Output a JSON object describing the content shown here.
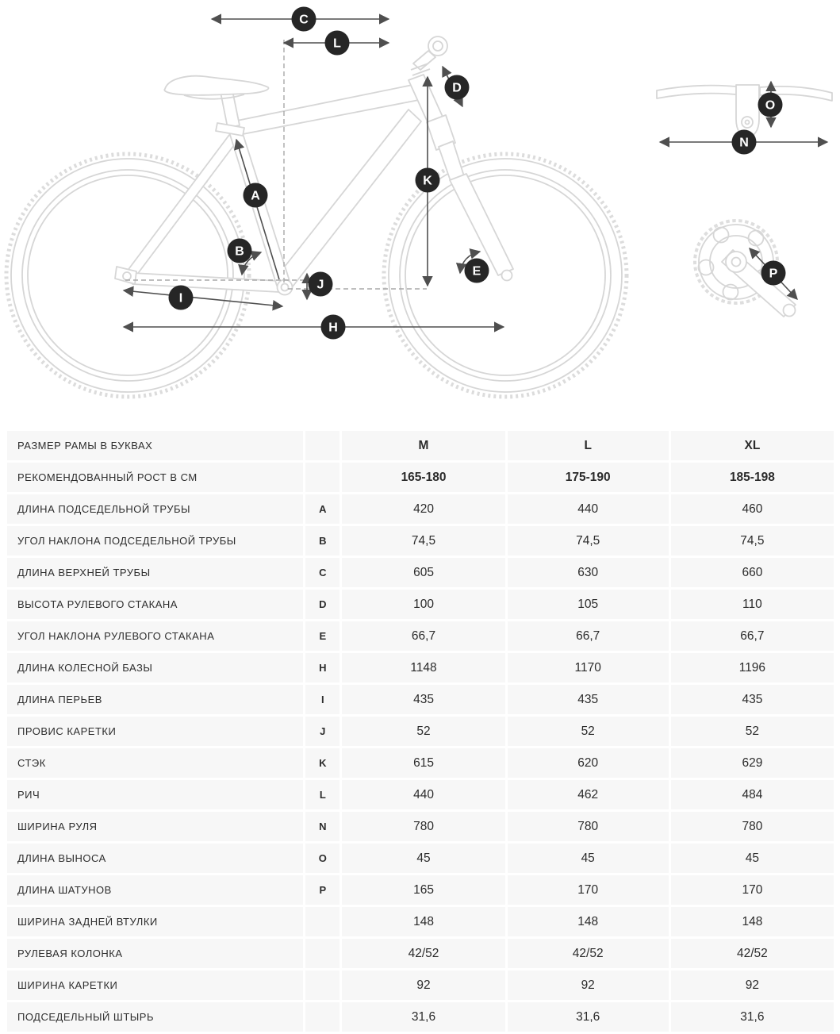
{
  "diagram": {
    "badge_color": "#262626",
    "art_color": "#d6d6d6",
    "dimension_color": "#4f4f4f",
    "badges": {
      "A": "A",
      "B": "B",
      "C": "C",
      "D": "D",
      "E": "E",
      "H": "H",
      "I": "I",
      "J": "J",
      "K": "K",
      "L": "L",
      "N": "N",
      "O": "O",
      "P": "P"
    }
  },
  "table": {
    "columns": [
      "M",
      "L",
      "XL"
    ],
    "rows": [
      {
        "label": "РАЗМЕР РАМЫ В БУКВАХ",
        "letter": "",
        "values": [
          "M",
          "L",
          "XL"
        ],
        "bold": true
      },
      {
        "label": "РЕКОМЕНДОВАННЫЙ РОСТ В СМ",
        "letter": "",
        "values": [
          "165-180",
          "175-190",
          "185-198"
        ],
        "bold": true
      },
      {
        "label": "ДЛИНА ПОДСЕДЕЛЬНОЙ ТРУБЫ",
        "letter": "A",
        "values": [
          "420",
          "440",
          "460"
        ],
        "bold": false
      },
      {
        "label": "УГОЛ НАКЛОНА ПОДСЕДЕЛЬНОЙ ТРУБЫ",
        "letter": "B",
        "values": [
          "74,5",
          "74,5",
          "74,5"
        ],
        "bold": false
      },
      {
        "label": "ДЛИНА ВЕРХНЕЙ ТРУБЫ",
        "letter": "C",
        "values": [
          "605",
          "630",
          "660"
        ],
        "bold": false
      },
      {
        "label": "ВЫСОТА РУЛЕВОГО СТАКАНА",
        "letter": "D",
        "values": [
          "100",
          "105",
          "110"
        ],
        "bold": false
      },
      {
        "label": "УГОЛ НАКЛОНА РУЛЕВОГО СТАКАНА",
        "letter": "E",
        "values": [
          "66,7",
          "66,7",
          "66,7"
        ],
        "bold": false
      },
      {
        "label": "ДЛИНА КОЛЕСНОЙ БАЗЫ",
        "letter": "H",
        "values": [
          "1148",
          "1170",
          "1196"
        ],
        "bold": false
      },
      {
        "label": "ДЛИНА ПЕРЬЕВ",
        "letter": "I",
        "values": [
          "435",
          "435",
          "435"
        ],
        "bold": false
      },
      {
        "label": "ПРОВИС КАРЕТКИ",
        "letter": "J",
        "values": [
          "52",
          "52",
          "52"
        ],
        "bold": false
      },
      {
        "label": "СТЭК",
        "letter": "K",
        "values": [
          "615",
          "620",
          "629"
        ],
        "bold": false
      },
      {
        "label": "РИЧ",
        "letter": "L",
        "values": [
          "440",
          "462",
          "484"
        ],
        "bold": false
      },
      {
        "label": "ШИРИНА РУЛЯ",
        "letter": "N",
        "values": [
          "780",
          "780",
          "780"
        ],
        "bold": false
      },
      {
        "label": "ДЛИНА ВЫНОСА",
        "letter": "O",
        "values": [
          "45",
          "45",
          "45"
        ],
        "bold": false
      },
      {
        "label": "ДЛИНА ШАТУНОВ",
        "letter": "P",
        "values": [
          "165",
          "170",
          "170"
        ],
        "bold": false
      },
      {
        "label": "ШИРИНА ЗАДНЕЙ ВТУЛКИ",
        "letter": "",
        "values": [
          "148",
          "148",
          "148"
        ],
        "bold": false
      },
      {
        "label": "РУЛЕВАЯ КОЛОНКА",
        "letter": "",
        "values": [
          "42/52",
          "42/52",
          "42/52"
        ],
        "bold": false
      },
      {
        "label": "ШИРИНА КАРЕТКИ",
        "letter": "",
        "values": [
          "92",
          "92",
          "92"
        ],
        "bold": false
      },
      {
        "label": "ПОДСЕДЕЛЬНЫЙ ШТЫРЬ",
        "letter": "",
        "values": [
          "31,6",
          "31,6",
          "31,6"
        ],
        "bold": false
      }
    ]
  }
}
